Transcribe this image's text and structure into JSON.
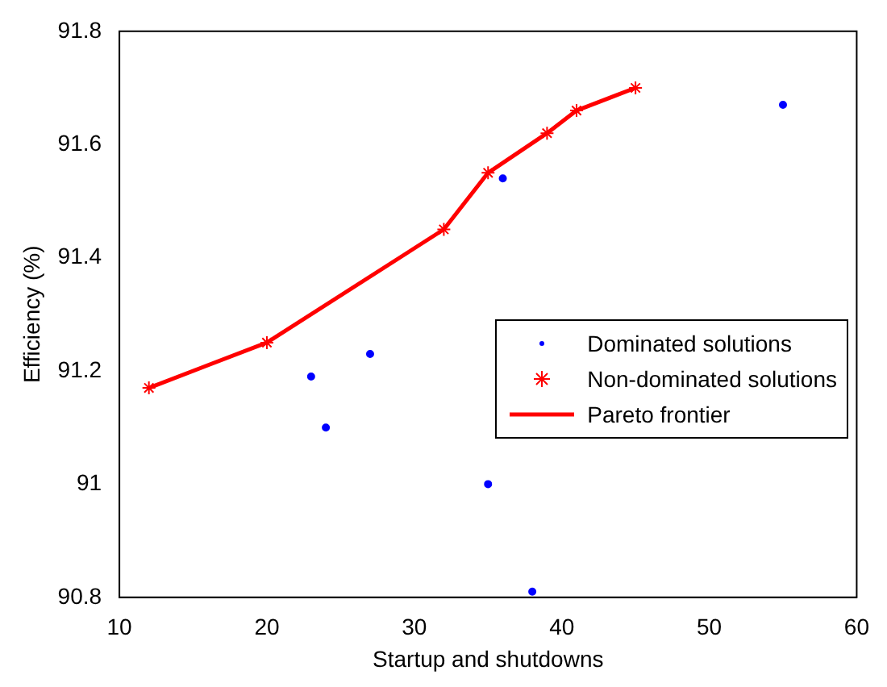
{
  "chart_data": {
    "type": "scatter",
    "xlabel": "Startup and shutdowns",
    "ylabel": "Efficiency (%)",
    "xlim": [
      10,
      60
    ],
    "xticks": [
      10,
      20,
      30,
      40,
      50,
      60
    ],
    "ylim": [
      90.8,
      91.8
    ],
    "yticks": [
      90.8,
      91,
      91.2,
      91.4,
      91.6,
      91.8
    ],
    "grid": false,
    "legend": "right",
    "series": [
      {
        "name": "Dominated solutions",
        "type": "scatter",
        "marker": "circle",
        "color": "#0000ff",
        "x": [
          23,
          24,
          27,
          35,
          36,
          38,
          55
        ],
        "values": [
          91.19,
          91.1,
          91.23,
          91.0,
          91.54,
          90.81,
          91.67
        ]
      },
      {
        "name": "Non-dominated solutions",
        "type": "scatter",
        "marker": "cross",
        "color": "#ff0000",
        "x": [
          12,
          20,
          32,
          35,
          39,
          41,
          45
        ],
        "values": [
          91.17,
          91.25,
          91.45,
          91.55,
          91.62,
          91.66,
          91.7
        ]
      },
      {
        "name": "Pareto frontier",
        "type": "line",
        "marker": "none",
        "line_style": "solid",
        "color": "#ff0000",
        "x": [
          12,
          20,
          32,
          35,
          39,
          41,
          45
        ],
        "values": [
          91.17,
          91.25,
          91.45,
          91.55,
          91.62,
          91.66,
          91.7
        ]
      }
    ]
  }
}
